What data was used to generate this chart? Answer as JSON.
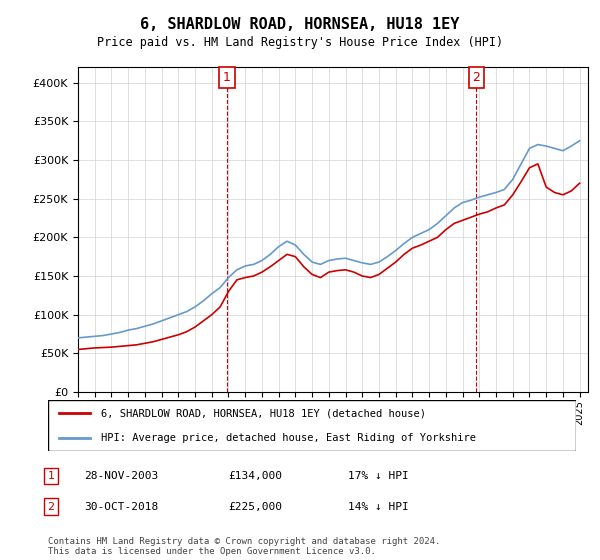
{
  "title": "6, SHARDLOW ROAD, HORNSEA, HU18 1EY",
  "subtitle": "Price paid vs. HM Land Registry's House Price Index (HPI)",
  "legend_line1": "6, SHARDLOW ROAD, HORNSEA, HU18 1EY (detached house)",
  "legend_line2": "HPI: Average price, detached house, East Riding of Yorkshire",
  "footer1": "Contains HM Land Registry data © Crown copyright and database right 2024.",
  "footer2": "This data is licensed under the Open Government Licence v3.0.",
  "table_rows": [
    {
      "num": "1",
      "date": "28-NOV-2003",
      "price": "£134,000",
      "hpi": "17% ↓ HPI"
    },
    {
      "num": "2",
      "date": "30-OCT-2018",
      "price": "£225,000",
      "hpi": "14% ↓ HPI"
    }
  ],
  "marker1_year": 2003.9,
  "marker2_year": 2018.83,
  "red_line_color": "#cc0000",
  "blue_line_color": "#6699cc",
  "marker_line_color": "#cc0000",
  "ylim": [
    0,
    420000
  ],
  "xlim_start": 1995,
  "xlim_end": 2025.5,
  "hpi_data": {
    "years": [
      1995,
      1995.5,
      1996,
      1996.5,
      1997,
      1997.5,
      1998,
      1998.5,
      1999,
      1999.5,
      2000,
      2000.5,
      2001,
      2001.5,
      2002,
      2002.5,
      2003,
      2003.5,
      2004,
      2004.5,
      2005,
      2005.5,
      2006,
      2006.5,
      2007,
      2007.5,
      2008,
      2008.5,
      2009,
      2009.5,
      2010,
      2010.5,
      2011,
      2011.5,
      2012,
      2012.5,
      2013,
      2013.5,
      2014,
      2014.5,
      2015,
      2015.5,
      2016,
      2016.5,
      2017,
      2017.5,
      2018,
      2018.5,
      2019,
      2019.5,
      2020,
      2020.5,
      2021,
      2021.5,
      2022,
      2022.5,
      2023,
      2023.5,
      2024,
      2024.5,
      2025
    ],
    "values": [
      70000,
      71000,
      72000,
      73000,
      75000,
      77000,
      80000,
      82000,
      85000,
      88000,
      92000,
      96000,
      100000,
      104000,
      110000,
      118000,
      127000,
      135000,
      148000,
      158000,
      163000,
      165000,
      170000,
      178000,
      188000,
      195000,
      190000,
      178000,
      168000,
      165000,
      170000,
      172000,
      173000,
      170000,
      167000,
      165000,
      168000,
      175000,
      183000,
      192000,
      200000,
      205000,
      210000,
      218000,
      228000,
      238000,
      245000,
      248000,
      252000,
      255000,
      258000,
      262000,
      275000,
      295000,
      315000,
      320000,
      318000,
      315000,
      312000,
      318000,
      325000
    ]
  },
  "price_paid_data": {
    "years": [
      1995,
      1995.5,
      1996,
      1996.5,
      1997,
      1997.5,
      1998,
      1998.5,
      1999,
      1999.5,
      2000,
      2000.5,
      2001,
      2001.5,
      2002,
      2002.5,
      2003,
      2003.5,
      2004,
      2004.5,
      2005,
      2005.5,
      2006,
      2006.5,
      2007,
      2007.5,
      2008,
      2008.5,
      2009,
      2009.5,
      2010,
      2010.5,
      2011,
      2011.5,
      2012,
      2012.5,
      2013,
      2013.5,
      2014,
      2014.5,
      2015,
      2015.5,
      2016,
      2016.5,
      2017,
      2017.5,
      2018,
      2018.5,
      2019,
      2019.5,
      2020,
      2020.5,
      2021,
      2021.5,
      2022,
      2022.5,
      2023,
      2023.5,
      2024,
      2024.5,
      2025
    ],
    "values": [
      55000,
      56000,
      57000,
      57500,
      58000,
      59000,
      60000,
      61000,
      63000,
      65000,
      68000,
      71000,
      74000,
      78000,
      84000,
      92000,
      100000,
      110000,
      130000,
      145000,
      148000,
      150000,
      155000,
      162000,
      170000,
      178000,
      175000,
      162000,
      152000,
      148000,
      155000,
      157000,
      158000,
      155000,
      150000,
      148000,
      152000,
      160000,
      168000,
      178000,
      186000,
      190000,
      195000,
      200000,
      210000,
      218000,
      222000,
      226000,
      230000,
      233000,
      238000,
      242000,
      255000,
      272000,
      290000,
      295000,
      265000,
      258000,
      255000,
      260000,
      270000
    ]
  }
}
